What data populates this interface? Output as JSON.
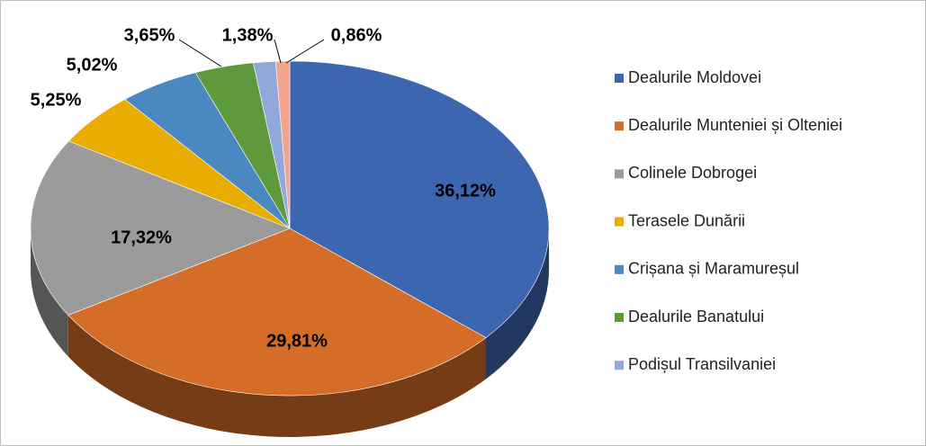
{
  "chart_data": {
    "type": "pie",
    "categories": [
      "Dealurile Moldovei",
      "Dealurile Munteniei și Olteniei",
      "Colinele Dobrogei",
      "Terasele Dunării",
      "Crișana și Maramureșul",
      "Dealurile Banatului",
      "Podișul Transilvaniei",
      null
    ],
    "values": [
      36.12,
      29.81,
      17.32,
      5.25,
      5.02,
      3.65,
      1.38,
      0.86
    ],
    "value_labels": [
      "36,12%",
      "29,81%",
      "17,32%",
      "5,25%",
      "5,02%",
      "3,65%",
      "1,38%",
      "0,86%"
    ],
    "colors": [
      "#3d66b0",
      "#d46d28",
      "#9b9b9b",
      "#e8ad00",
      "#4a88c2",
      "#5e9a3c",
      "#93a8da",
      "#f2a58a"
    ],
    "legend": "right"
  }
}
